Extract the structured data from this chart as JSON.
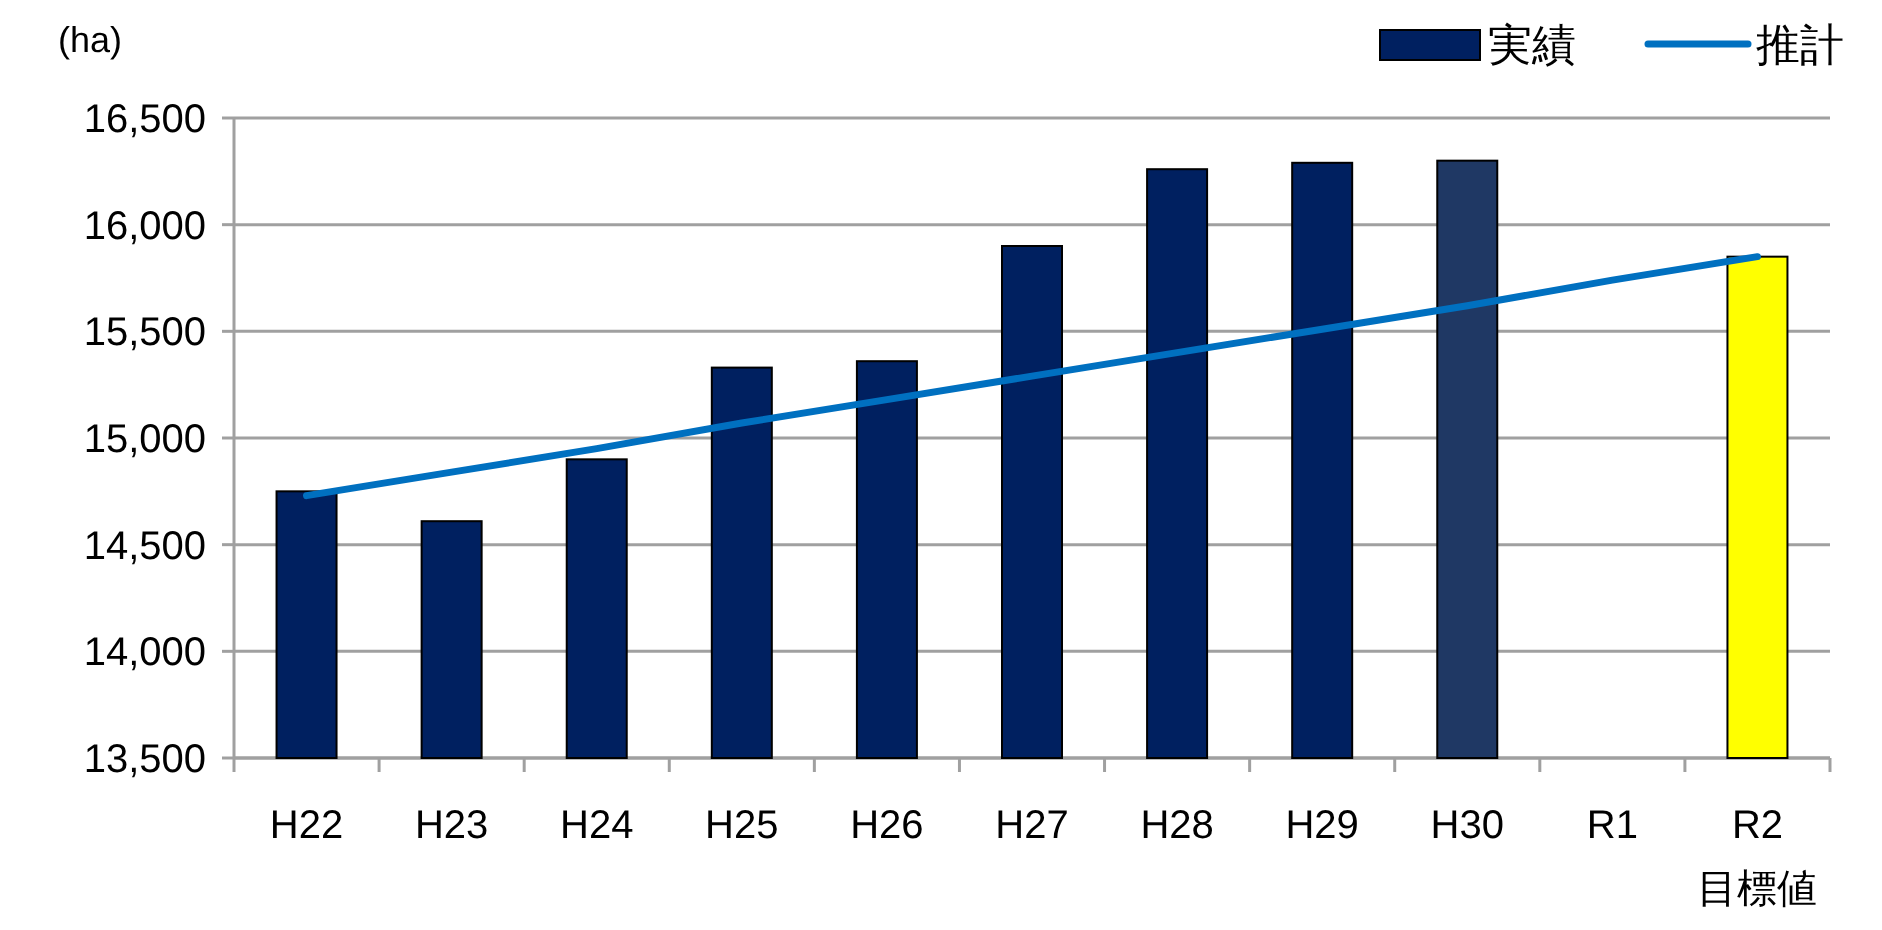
{
  "chart_data": {
    "type": "bar",
    "ylabel": "(ha)",
    "categories": [
      "H22",
      "H23",
      "H24",
      "H25",
      "H26",
      "H27",
      "H28",
      "H29",
      "H30",
      "R1",
      "R2"
    ],
    "series": [
      {
        "name": "実績",
        "color": "#002060",
        "colors": [
          "#002060",
          "#002060",
          "#002060",
          "#002060",
          "#002060",
          "#002060",
          "#002060",
          "#002060",
          "#1f3864",
          null,
          "#ffff00"
        ],
        "values": [
          14750,
          14610,
          14900,
          15330,
          15360,
          15900,
          16260,
          16290,
          16300,
          null,
          15850
        ]
      },
      {
        "name": "推計",
        "type": "line",
        "color": "#0070c0",
        "values": [
          14730,
          14840,
          14950,
          15070,
          15180,
          15290,
          15400,
          15510,
          15620,
          15740,
          15850
        ]
      }
    ],
    "annotations": [
      "目標値"
    ],
    "ylim": [
      13500,
      16500
    ],
    "yticks": [
      {
        "value": 13500,
        "label": "13,500"
      },
      {
        "value": 14000,
        "label": "14,000"
      },
      {
        "value": 14500,
        "label": "14,500"
      },
      {
        "value": 15000,
        "label": "15,000"
      },
      {
        "value": 15500,
        "label": "15,500"
      },
      {
        "value": 16000,
        "label": "16,000"
      },
      {
        "value": 16500,
        "label": "16,500"
      }
    ],
    "grid": "y",
    "legend": "top right",
    "marker": "none",
    "line_style": "solid"
  }
}
